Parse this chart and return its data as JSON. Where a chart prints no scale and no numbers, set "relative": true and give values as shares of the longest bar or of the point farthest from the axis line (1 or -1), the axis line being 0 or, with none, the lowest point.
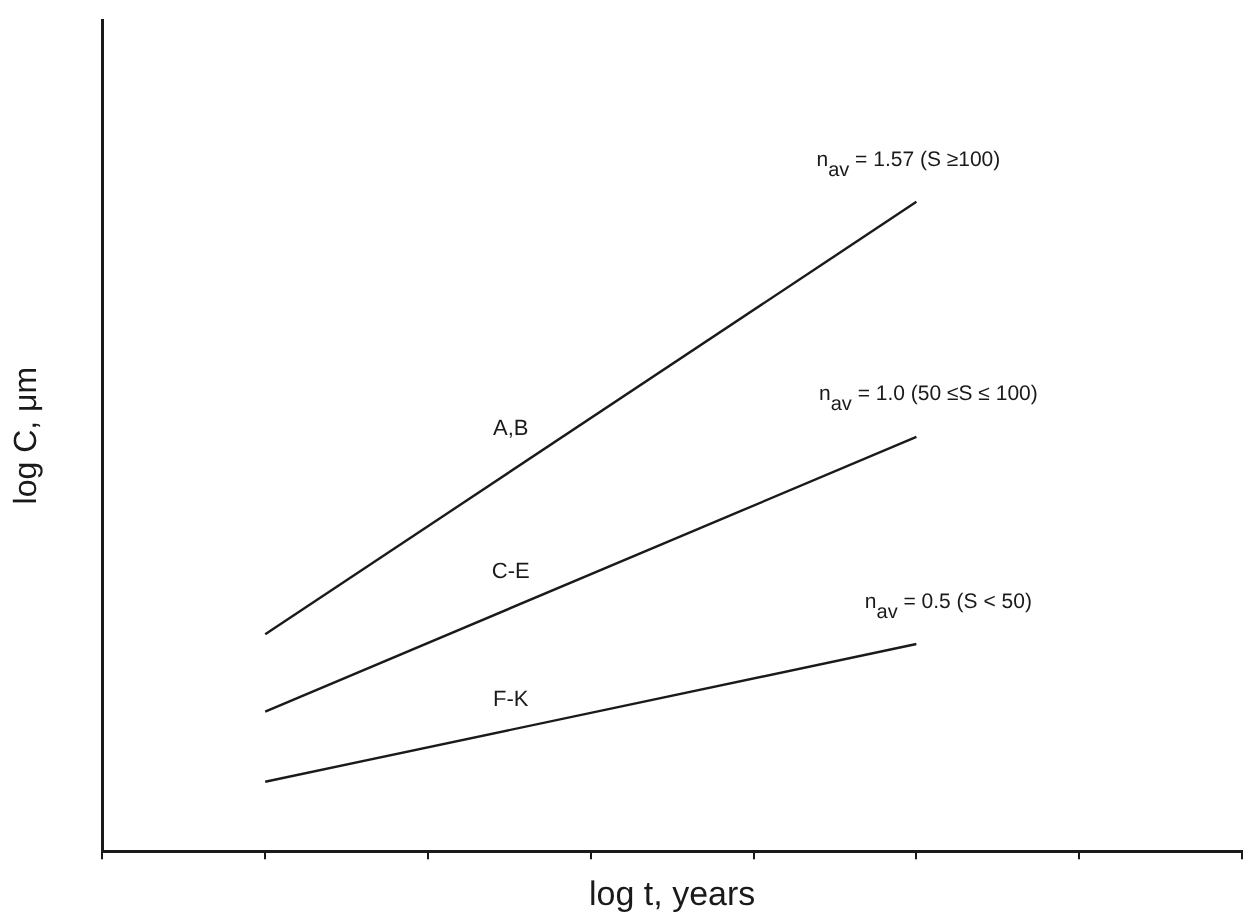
{
  "chart_data": {
    "type": "line",
    "relative": true,
    "xlabel": "log t, years",
    "ylabel": "log C, μm",
    "categories": [
      null,
      null,
      null,
      null,
      null,
      null,
      null,
      null
    ],
    "series": [
      {
        "name": "A,B",
        "color": "#1a1a1a",
        "values": [
          null,
          0.334,
          null,
          null,
          null,
          1,
          null,
          null
        ]
      },
      {
        "name": "C-E",
        "color": "#1a1a1a",
        "values": [
          null,
          0.215,
          null,
          null,
          null,
          0.638,
          null,
          null
        ]
      },
      {
        "name": "F-K",
        "color": "#1a1a1a",
        "values": [
          null,
          0.107,
          null,
          null,
          null,
          0.319,
          null,
          null
        ]
      }
    ],
    "annotations": [
      "n$_{av}$ = 1.57 (S  ≥100)",
      "n$_{av}$ = 1.0 (50  ≤S   ≤ 100)",
      "n$_{av}$ = 0.5 (S < 50)"
    ],
    "marker": "none",
    "line_style": "solid",
    "grid": false,
    "legend": false
  }
}
